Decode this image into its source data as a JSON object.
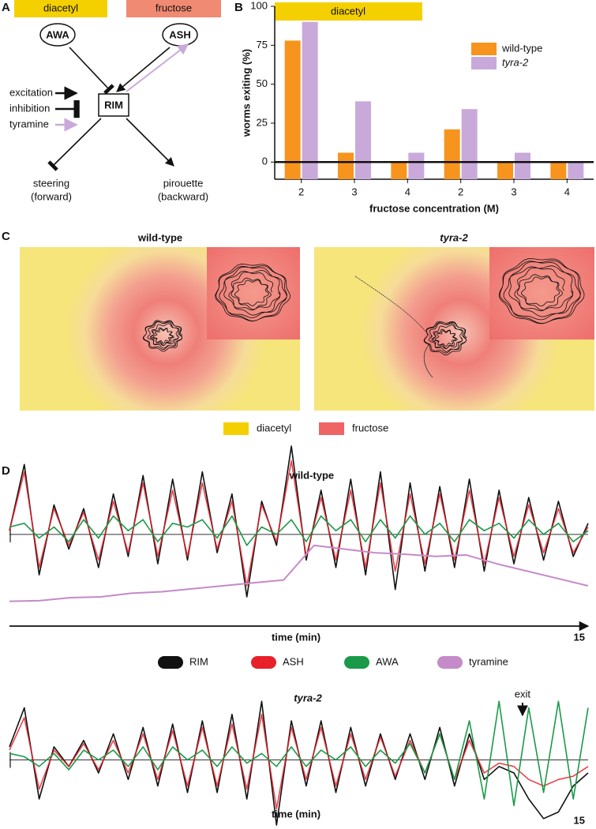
{
  "panel_labels": [
    "A",
    "B",
    "C",
    "D"
  ],
  "diagram": {
    "stimuli": [
      {
        "name": "diacetyl",
        "color": "#f5d000"
      },
      {
        "name": "fructose",
        "color": "#f08a72"
      }
    ],
    "neurons": [
      "AWA",
      "ASH",
      "RIM"
    ],
    "legend": [
      "excitation",
      "inhibition",
      "tyramine"
    ],
    "outputs": [
      [
        "steering",
        "(forward)"
      ],
      [
        "pirouette",
        "(backward)"
      ]
    ]
  },
  "chart_data": [
    {
      "type": "bar",
      "annotation": {
        "text": "diacetyl",
        "color": "#f5d000"
      },
      "ylabel": "worms exiting (%)",
      "xlabel": "fructose concentration (M)",
      "categories": [
        "2",
        "3",
        "4",
        "2",
        "3",
        "4"
      ],
      "series": [
        {
          "name": "wild-type",
          "color": "#f7941d",
          "values": [
            78,
            6,
            0,
            21,
            0,
            0
          ]
        },
        {
          "name": "tyra-2",
          "color": "#c9a9da",
          "values": [
            90,
            39,
            6,
            34,
            6,
            0
          ]
        }
      ],
      "ylim": [
        -11,
        100
      ],
      "yticks": [
        0,
        25,
        50,
        75,
        100
      ]
    },
    {
      "type": "line",
      "title": "wild-type",
      "xlabel": "time (min)",
      "xlim": [
        0,
        15
      ],
      "xticks": [
        15
      ],
      "ylim": [
        -1,
        1.2
      ],
      "series": [
        {
          "name": "RIM",
          "color": "#111111",
          "values": [
            0.05,
            0.95,
            -0.55,
            0.4,
            -0.2,
            0.35,
            -0.45,
            0.55,
            -0.3,
            0.8,
            -0.4,
            0.75,
            -0.35,
            0.85,
            -0.25,
            0.55,
            -0.85,
            0.45,
            -0.15,
            1.2,
            -0.35,
            0.6,
            -0.45,
            0.75,
            -0.55,
            0.85,
            -0.75,
            0.7,
            -0.5,
            0.65,
            -0.45,
            0.75,
            -0.5,
            0.6,
            -0.4,
            0.5,
            -0.35,
            0.45,
            -0.3,
            0.15
          ]
        },
        {
          "name": "ASH",
          "color": "#e8202a",
          "values": [
            0.05,
            0.85,
            -0.45,
            0.35,
            -0.15,
            0.3,
            -0.35,
            0.45,
            -0.25,
            0.7,
            -0.3,
            0.6,
            -0.3,
            0.7,
            -0.2,
            0.45,
            -0.7,
            0.4,
            -0.1,
            1.0,
            -0.3,
            0.5,
            -0.35,
            0.6,
            -0.45,
            0.7,
            -0.5,
            0.55,
            -0.4,
            0.55,
            -0.35,
            0.6,
            -0.4,
            0.5,
            -0.3,
            0.4,
            -0.25,
            0.35,
            -0.25,
            0.1
          ]
        },
        {
          "name": "AWA",
          "color": "#1a9a48",
          "values": [
            0.1,
            0.15,
            -0.05,
            0.1,
            -0.1,
            0.2,
            -0.05,
            0.25,
            0.05,
            0.2,
            -0.1,
            0.15,
            0.1,
            0.2,
            -0.05,
            0.25,
            -0.15,
            0.1,
            0,
            0.2,
            -0.1,
            0.25,
            0.05,
            0.2,
            -0.1,
            0.2,
            -0.05,
            0.25,
            0,
            0.15,
            -0.1,
            0.2,
            0.05,
            0.15,
            -0.05,
            0.2,
            0,
            0.15,
            -0.1,
            0.05
          ]
        },
        {
          "name": "tyramine",
          "color": "#c58ac8",
          "values": [
            -0.91,
            -0.9,
            -0.86,
            -0.85,
            -0.8,
            -0.78,
            -0.74,
            -0.7,
            -0.66,
            -0.62,
            -0.15,
            -0.2,
            -0.25,
            -0.27,
            -0.3,
            -0.28,
            -0.4,
            -0.5,
            -0.6,
            -0.7
          ]
        }
      ]
    },
    {
      "type": "line",
      "title": "tyra-2",
      "xlabel": "time (min)",
      "xlim": [
        0,
        15
      ],
      "xticks": [
        15
      ],
      "ylim": [
        -1,
        1
      ],
      "annotation": {
        "text": "exit",
        "x": 13.3
      },
      "series": [
        {
          "color": "#111111",
          "values": [
            0.2,
            0.8,
            -0.6,
            0.2,
            -0.1,
            0.3,
            -0.2,
            0.4,
            -0.3,
            0.5,
            -0.4,
            0.55,
            -0.5,
            0.6,
            -0.5,
            0.7,
            -0.6,
            0.9,
            -1.0,
            0.6,
            -0.4,
            0.6,
            -0.5,
            0.5,
            -0.4,
            0.4,
            -0.3,
            0.4,
            -0.3,
            0.5,
            -0.4,
            0.4,
            -0.3,
            -0.1,
            -0.2,
            -0.6,
            -0.9,
            -0.8,
            -0.4,
            -0.2
          ]
        },
        {
          "color": "#e8202a",
          "values": [
            0.15,
            0.65,
            -0.45,
            0.15,
            -0.1,
            0.25,
            -0.15,
            0.3,
            -0.2,
            0.4,
            -0.3,
            0.45,
            -0.4,
            0.5,
            -0.4,
            0.55,
            -0.45,
            0.7,
            -0.75,
            0.5,
            -0.3,
            0.5,
            -0.4,
            0.4,
            -0.3,
            0.35,
            -0.25,
            0.3,
            -0.2,
            0.4,
            -0.3,
            0.3,
            -0.2,
            -0.05,
            -0.1,
            -0.3,
            -0.4,
            -0.3,
            -0.25,
            -0.1
          ]
        },
        {
          "color": "#1a9a48",
          "values": [
            0.1,
            0.05,
            -0.1,
            0.1,
            -0.15,
            0.15,
            0,
            0.15,
            -0.1,
            0.2,
            -0.15,
            0.2,
            0,
            0.15,
            -0.1,
            0.2,
            -0.05,
            0.1,
            -0.1,
            0.2,
            -0.1,
            0.15,
            0,
            0.2,
            -0.1,
            0.15,
            -0.05,
            0.25,
            -0.2,
            0.4,
            -0.3,
            0.6,
            -0.6,
            0.9,
            -0.7,
            0.8,
            -0.5,
            0.9,
            -0.6,
            0.8
          ]
        }
      ]
    }
  ],
  "panel_c": {
    "titles": [
      "wild-type",
      "tyra-2"
    ],
    "legend": [
      {
        "name": "diacetyl",
        "color": "#f5d000"
      },
      {
        "name": "fructose",
        "color": "#ef6464"
      }
    ]
  }
}
